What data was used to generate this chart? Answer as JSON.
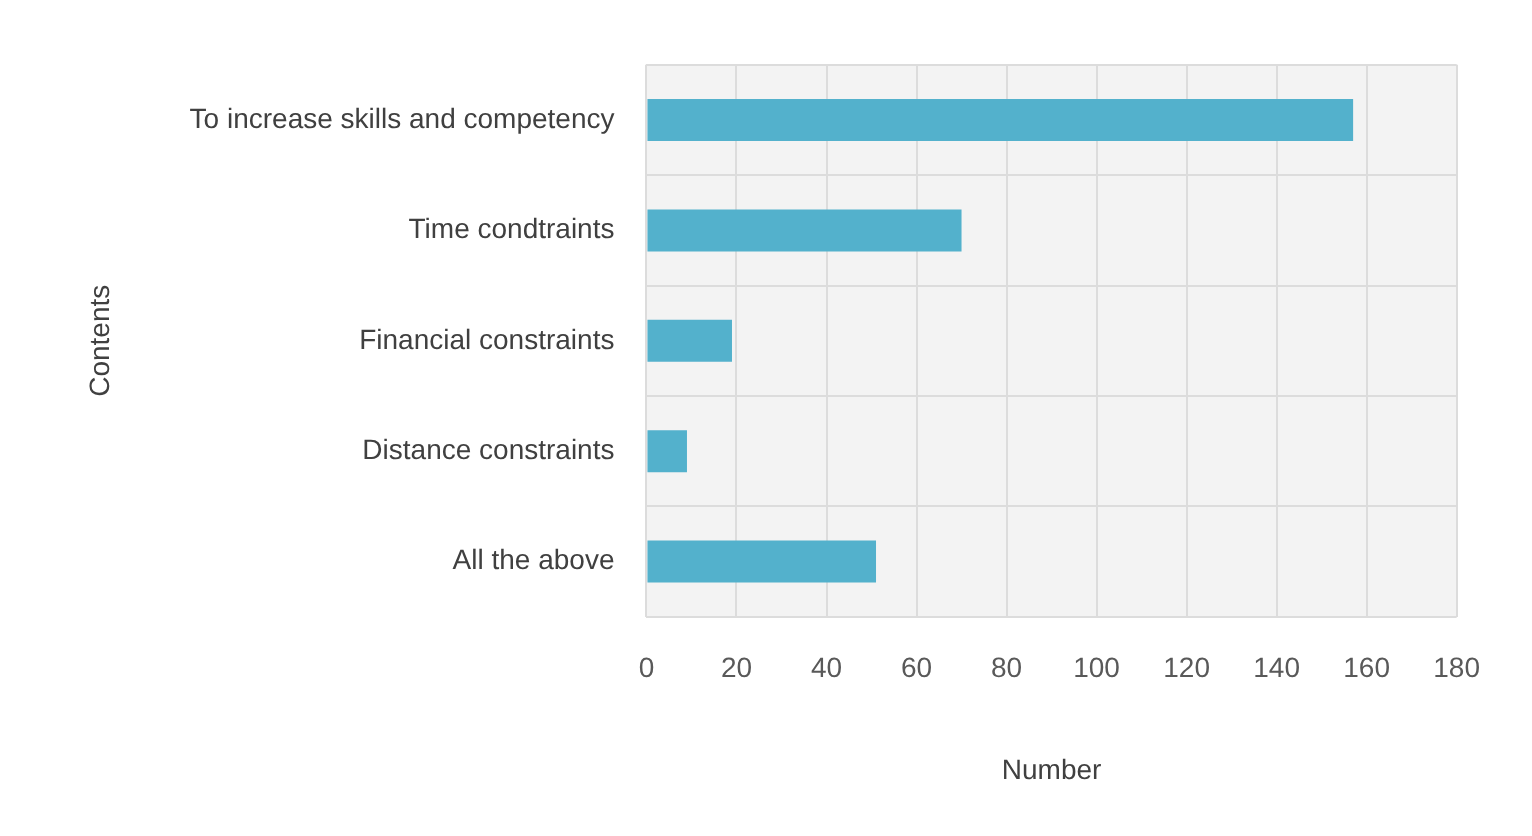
{
  "chart_data": {
    "type": "bar",
    "orientation": "horizontal",
    "xlabel": "Number",
    "ylabel": "Contents",
    "categories": [
      "To increase skills and competency",
      "Time condtraints",
      "Financial constraints",
      "Distance constraints",
      "All the above"
    ],
    "values": [
      157,
      70,
      19,
      9,
      51
    ],
    "color": "#53b1cc",
    "xlim": [
      0,
      180
    ],
    "xticks": [
      0,
      20,
      40,
      60,
      80,
      100,
      120,
      140,
      160,
      180
    ],
    "grid": true,
    "legend": false
  }
}
